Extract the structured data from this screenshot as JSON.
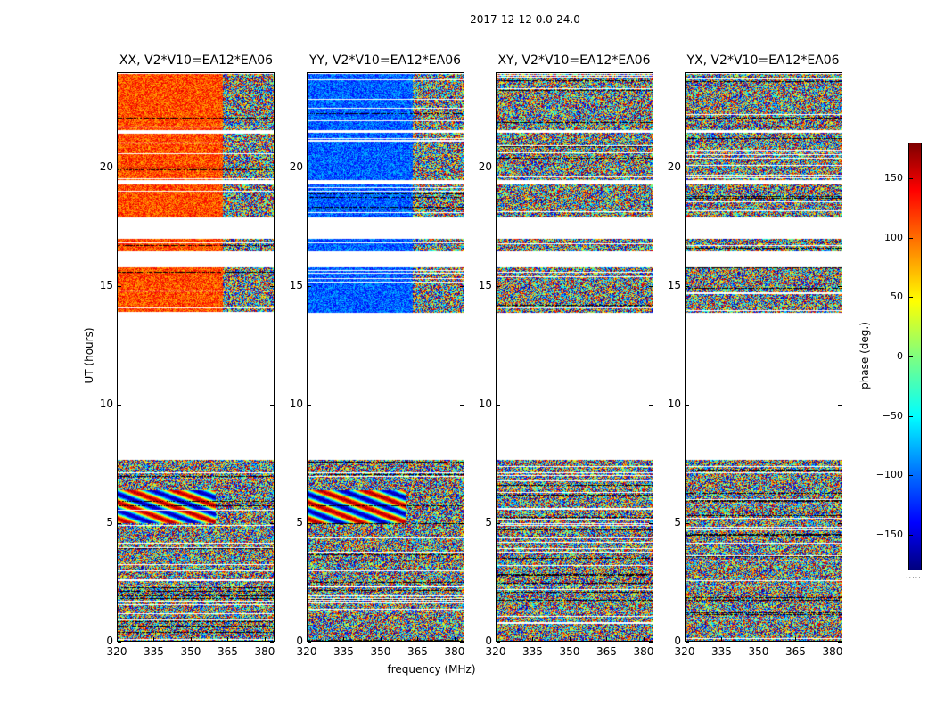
{
  "chart_data": {
    "type": "heatmap",
    "title": "2017-12-12 0.0-24.0",
    "xlabel": "frequency (MHz)",
    "ylabel": "UT (hours)",
    "xlim": [
      320,
      384
    ],
    "ylim": [
      0,
      24
    ],
    "x_ticks": [
      "320",
      "335",
      "350",
      "365",
      "380"
    ],
    "x_tick_values": [
      320,
      335,
      350,
      365,
      380
    ],
    "y_ticks": [
      "0",
      "5",
      "10",
      "15",
      "20"
    ],
    "y_tick_values": [
      0,
      5,
      10,
      15,
      20
    ],
    "colorbar": {
      "label": "phase (deg.)",
      "range": [
        -180,
        180
      ],
      "ticks": [
        "150",
        "100",
        "50",
        "0",
        "−50",
        "−100",
        "−150"
      ],
      "tick_values": [
        150,
        100,
        50,
        0,
        -50,
        -100,
        -150
      ],
      "colormap": "jet"
    },
    "panels": [
      {
        "title": "XX, V2*V10=EA12*EA06",
        "mode": "xx"
      },
      {
        "title": "YY, V2*V10=EA12*EA06",
        "mode": "yy"
      },
      {
        "title": "XY, V2*V10=EA12*EA06",
        "mode": "xy"
      },
      {
        "title": "YX, V2*V10=EA12*EA06",
        "mode": "yx"
      }
    ],
    "data_segments_hours": [
      [
        0,
        2.3
      ],
      [
        2.35,
        7.1
      ],
      [
        7.15,
        7.65
      ],
      [
        13.9,
        15.8
      ],
      [
        16.5,
        17.0
      ],
      [
        17.9,
        19.3
      ],
      [
        19.5,
        21.5
      ],
      [
        21.6,
        24.0
      ]
    ],
    "gap_hours": [
      [
        7.7,
        13.9
      ],
      [
        16.0,
        16.4
      ],
      [
        17.1,
        17.4
      ],
      [
        19.4,
        19.5
      ]
    ]
  }
}
